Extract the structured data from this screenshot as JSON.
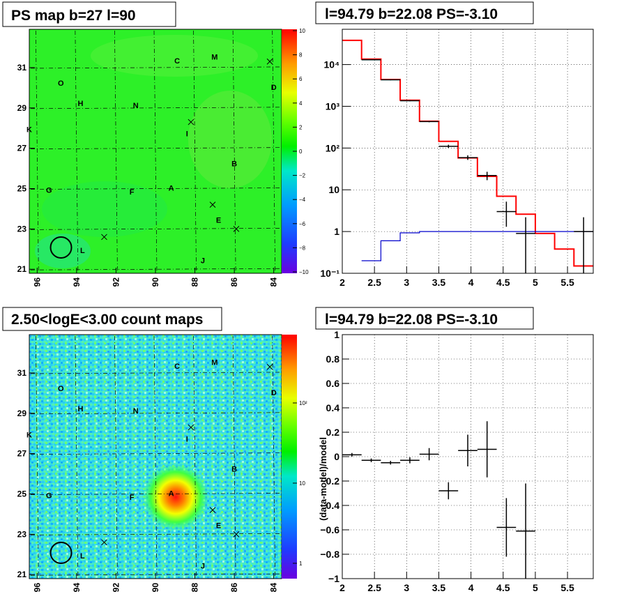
{
  "panels": {
    "psmap": {
      "title": "PS map b=27 l=90",
      "xticks": [
        "96",
        "94",
        "92",
        "90",
        "88",
        "86",
        "84"
      ],
      "yticks": [
        "31",
        "29",
        "27",
        "25",
        "23",
        "21"
      ],
      "colorbar_ticks": [
        "10",
        "8",
        "6",
        "4",
        "2",
        "0",
        "−2",
        "−4",
        "−6",
        "−8",
        "−10"
      ],
      "colorbar_range": [
        -10,
        10
      ]
    },
    "countmap": {
      "title": "2.50<logE<3.00 count maps",
      "xticks": [
        "96",
        "94",
        "92",
        "90",
        "88",
        "86",
        "84"
      ],
      "yticks": [
        "31",
        "29",
        "27",
        "25",
        "23",
        "21"
      ],
      "colorbar_ticks": [
        "10²",
        "10",
        "1"
      ]
    },
    "spectrum": {
      "title": "l=94.79 b=22.08 PS=-3.10"
    },
    "residual": {
      "title": "l=94.79 b=22.08 PS=-3.10"
    }
  },
  "map_labels": [
    {
      "name": "C",
      "l": 88.9,
      "b": 31.2
    },
    {
      "name": "M",
      "l": 87.0,
      "b": 31.4
    },
    {
      "name": "O",
      "l": 94.8,
      "b": 30.1
    },
    {
      "name": "D",
      "l": 84.0,
      "b": 29.9
    },
    {
      "name": "H",
      "l": 93.8,
      "b": 29.1
    },
    {
      "name": "N",
      "l": 91.0,
      "b": 29.0
    },
    {
      "name": "K",
      "l": 96.4,
      "b": 27.8
    },
    {
      "name": "I",
      "l": 88.4,
      "b": 27.6
    },
    {
      "name": "B",
      "l": 86.0,
      "b": 26.1
    },
    {
      "name": "G",
      "l": 95.4,
      "b": 24.8
    },
    {
      "name": "A",
      "l": 89.2,
      "b": 24.9
    },
    {
      "name": "F",
      "l": 91.2,
      "b": 24.7
    },
    {
      "name": "E",
      "l": 86.8,
      "b": 23.3
    },
    {
      "name": "L",
      "l": 93.7,
      "b": 21.8
    },
    {
      "name": "J",
      "l": 87.6,
      "b": 21.3
    }
  ],
  "map_crosses": [
    {
      "l": 84.2,
      "b": 31.3
    },
    {
      "l": 88.2,
      "b": 28.3
    },
    {
      "l": 87.1,
      "b": 24.2
    },
    {
      "l": 85.9,
      "b": 23.0
    },
    {
      "l": 92.6,
      "b": 22.6
    }
  ],
  "map_circle": {
    "l": 94.79,
    "b": 22.08
  },
  "chart_data": [
    {
      "type": "line",
      "panel": "spectrum",
      "title": "l=94.79 b=22.08 PS=-3.10",
      "xlabel": "",
      "ylabel": "",
      "xlim": [
        2,
        5.9
      ],
      "ylim": [
        0.1,
        70000
      ],
      "yscale": "log",
      "xticks": [
        "2",
        "2.5",
        "3",
        "3.5",
        "4",
        "4.5",
        "5",
        "5.5"
      ],
      "yticks": [
        {
          "label": "10⁻¹",
          "value": 0.1
        },
        {
          "label": "1",
          "value": 1
        },
        {
          "label": "10",
          "value": 10
        },
        {
          "label": "10²",
          "value": 100
        },
        {
          "label": "10³",
          "value": 1000
        },
        {
          "label": "10⁴",
          "value": 10000
        }
      ],
      "grid": true,
      "series": [
        {
          "color": "#ff0000",
          "kind": "step",
          "edges": [
            2,
            2.3,
            2.6,
            2.9,
            3.2,
            3.5,
            3.8,
            4.1,
            4.4,
            4.7,
            5.0,
            5.3,
            5.6,
            5.9
          ],
          "values": [
            38000,
            13500,
            4400,
            1400,
            440,
            145,
            58,
            21,
            7,
            2.6,
            0.9,
            0.38,
            0.15
          ]
        },
        {
          "color": "#0000cc",
          "kind": "step",
          "edges": [
            2.3,
            2.6,
            2.9,
            3.2,
            3.5,
            3.8,
            4.1,
            4.4,
            4.7,
            5.0,
            5.3,
            5.6,
            5.9
          ],
          "values": [
            0.2,
            0.6,
            0.93,
            1.0,
            1.0,
            1.0,
            1.0,
            1.0,
            1.0,
            1.0,
            1.0,
            1.0
          ]
        },
        {
          "color": "#000000",
          "kind": "points",
          "points": [
            {
              "x": 2.45,
              "y": 13000,
              "xerr": 0.15,
              "ylo": 12800,
              "yhi": 13200
            },
            {
              "x": 2.75,
              "y": 4300,
              "xerr": 0.15,
              "ylo": 4200,
              "yhi": 4400
            },
            {
              "x": 3.05,
              "y": 1360,
              "xerr": 0.15,
              "ylo": 1320,
              "yhi": 1400
            },
            {
              "x": 3.35,
              "y": 430,
              "xerr": 0.15,
              "ylo": 415,
              "yhi": 445
            },
            {
              "x": 3.65,
              "y": 110,
              "xerr": 0.15,
              "ylo": 100,
              "yhi": 120
            },
            {
              "x": 3.95,
              "y": 59,
              "xerr": 0.15,
              "ylo": 52,
              "yhi": 67
            },
            {
              "x": 4.25,
              "y": 22,
              "xerr": 0.15,
              "ylo": 17,
              "yhi": 27
            },
            {
              "x": 4.55,
              "y": 3,
              "xerr": 0.15,
              "ylo": 1.3,
              "yhi": 5.2
            },
            {
              "x": 4.85,
              "y": 0.9,
              "xerr": 0.15,
              "ylo": 0.1,
              "yhi": 2.2
            },
            {
              "x": 5.75,
              "y": 1.0,
              "xerr": 0.15,
              "ylo": 0.1,
              "yhi": 2.2
            }
          ]
        }
      ]
    },
    {
      "type": "scatter",
      "panel": "residual",
      "title": "l=94.79 b=22.08 PS=-3.10",
      "xlabel": "",
      "ylabel": "(data-model)/model",
      "xlim": [
        2,
        5.9
      ],
      "ylim": [
        -1,
        1
      ],
      "xticks": [
        "2",
        "2.5",
        "3",
        "3.5",
        "4",
        "4.5",
        "5",
        "5.5"
      ],
      "yticks": [
        "1",
        "0.8",
        "0.6",
        "0.4",
        "0.2",
        "0",
        "−0.2",
        "−0.4",
        "−0.6",
        "−0.8",
        "−1"
      ],
      "grid": true,
      "points": [
        {
          "x": 2.15,
          "y": 0.015,
          "xerr": 0.15,
          "ylo": 0.0,
          "yhi": 0.03
        },
        {
          "x": 2.45,
          "y": -0.03,
          "xerr": 0.15,
          "ylo": -0.045,
          "yhi": -0.015
        },
        {
          "x": 2.75,
          "y": -0.05,
          "xerr": 0.15,
          "ylo": -0.065,
          "yhi": -0.035
        },
        {
          "x": 3.05,
          "y": -0.03,
          "xerr": 0.15,
          "ylo": -0.055,
          "yhi": -0.005
        },
        {
          "x": 3.35,
          "y": 0.02,
          "xerr": 0.15,
          "ylo": -0.03,
          "yhi": 0.07
        },
        {
          "x": 3.65,
          "y": -0.28,
          "xerr": 0.15,
          "ylo": -0.35,
          "yhi": -0.21
        },
        {
          "x": 3.95,
          "y": 0.05,
          "xerr": 0.15,
          "ylo": -0.08,
          "yhi": 0.18
        },
        {
          "x": 4.25,
          "y": 0.06,
          "xerr": 0.15,
          "ylo": -0.17,
          "yhi": 0.29
        },
        {
          "x": 4.55,
          "y": -0.58,
          "xerr": 0.15,
          "ylo": -0.82,
          "yhi": -0.34
        },
        {
          "x": 4.85,
          "y": -0.61,
          "xerr": 0.15,
          "ylo": -1.0,
          "yhi": -0.22
        }
      ]
    }
  ]
}
